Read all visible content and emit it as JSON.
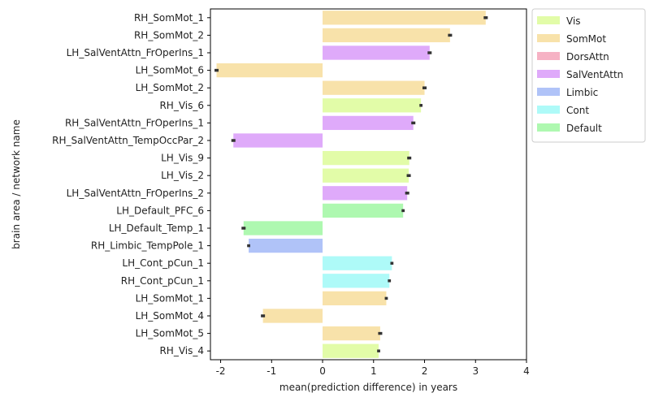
{
  "chart_data": {
    "type": "bar",
    "orientation": "horizontal",
    "xlabel": "mean(prediction difference) in years",
    "ylabel": "brain area / network name",
    "xlim": [
      -2.2,
      4
    ],
    "xticks": [
      -2,
      -1,
      0,
      1,
      2,
      3,
      4
    ],
    "grid": false,
    "legend_position": "top-right outside",
    "networks": [
      {
        "name": "Vis",
        "color": "#e2fca8"
      },
      {
        "name": "SomMot",
        "color": "#f8e2aa"
      },
      {
        "name": "DorsAttn",
        "color": "#f6b2c4"
      },
      {
        "name": "SalVentAttn",
        "color": "#dfaafa"
      },
      {
        "name": "Limbic",
        "color": "#b0c3f8"
      },
      {
        "name": "Cont",
        "color": "#aefaf8"
      },
      {
        "name": "Default",
        "color": "#aef8b0"
      }
    ],
    "bars": [
      {
        "label": "RH_SomMot_1",
        "value": 3.2,
        "error": 0.04,
        "network": "SomMot"
      },
      {
        "label": "RH_SomMot_2",
        "value": 2.5,
        "error": 0.04,
        "network": "SomMot"
      },
      {
        "label": "LH_SalVentAttn_FrOperIns_1",
        "value": 2.1,
        "error": 0.04,
        "network": "SalVentAttn"
      },
      {
        "label": "LH_SomMot_6",
        "value": -2.08,
        "error": 0.04,
        "network": "SomMot"
      },
      {
        "label": "LH_SomMot_2",
        "value": 2.0,
        "error": 0.04,
        "network": "SomMot"
      },
      {
        "label": "RH_Vis_6",
        "value": 1.93,
        "error": 0.03,
        "network": "Vis"
      },
      {
        "label": "RH_SalVentAttn_FrOperIns_1",
        "value": 1.78,
        "error": 0.04,
        "network": "SalVentAttn"
      },
      {
        "label": "RH_SalVentAttn_TempOccPar_2",
        "value": -1.75,
        "error": 0.04,
        "network": "SalVentAttn"
      },
      {
        "label": "LH_Vis_9",
        "value": 1.7,
        "error": 0.04,
        "network": "Vis"
      },
      {
        "label": "LH_Vis_2",
        "value": 1.69,
        "error": 0.04,
        "network": "Vis"
      },
      {
        "label": "LH_SalVentAttn_FrOperIns_2",
        "value": 1.66,
        "error": 0.04,
        "network": "SalVentAttn"
      },
      {
        "label": "LH_Default_PFC_6",
        "value": 1.58,
        "error": 0.03,
        "network": "Default"
      },
      {
        "label": "LH_Default_Temp_1",
        "value": -1.55,
        "error": 0.04,
        "network": "Default"
      },
      {
        "label": "RH_Limbic_TempPole_1",
        "value": -1.45,
        "error": 0.03,
        "network": "Limbic"
      },
      {
        "label": "LH_Cont_pCun_1",
        "value": 1.36,
        "error": 0.03,
        "network": "Cont"
      },
      {
        "label": "RH_Cont_pCun_1",
        "value": 1.31,
        "error": 0.03,
        "network": "Cont"
      },
      {
        "label": "LH_SomMot_1",
        "value": 1.25,
        "error": 0.03,
        "network": "SomMot"
      },
      {
        "label": "LH_SomMot_4",
        "value": -1.17,
        "error": 0.04,
        "network": "SomMot"
      },
      {
        "label": "LH_SomMot_5",
        "value": 1.13,
        "error": 0.04,
        "network": "SomMot"
      },
      {
        "label": "RH_Vis_4",
        "value": 1.1,
        "error": 0.03,
        "network": "Vis"
      }
    ]
  }
}
